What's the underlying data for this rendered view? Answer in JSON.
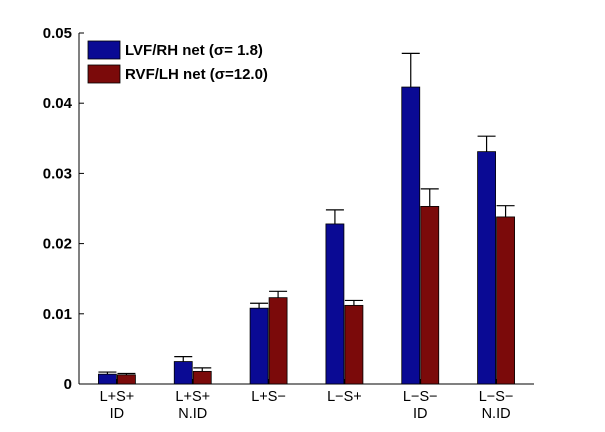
{
  "chart_data": {
    "type": "bar",
    "categories": [
      [
        "L+S+",
        "ID"
      ],
      [
        "L+S+",
        "N.ID"
      ],
      [
        "L+S−"
      ],
      [
        "L−S+"
      ],
      [
        "L−S−",
        "ID"
      ],
      [
        "L−S−",
        "N.ID"
      ]
    ],
    "series": [
      {
        "name": "LVF/RH net (σ= 1.8)",
        "color": "#0a0a94",
        "values": [
          0.0014,
          0.0032,
          0.0108,
          0.0228,
          0.0423,
          0.0331
        ],
        "errors": [
          0.0003,
          0.0007,
          0.0007,
          0.002,
          0.0048,
          0.0022
        ]
      },
      {
        "name": "RVF/LH net (σ=12.0)",
        "color": "#7b0a0a",
        "values": [
          0.0013,
          0.0018,
          0.0123,
          0.0112,
          0.0253,
          0.0238
        ],
        "errors": [
          0.0002,
          0.0005,
          0.0009,
          0.0007,
          0.0025,
          0.0016
        ]
      }
    ],
    "ylim": [
      0,
      0.05
    ],
    "yticks": [
      "0",
      "0.01",
      "0.02",
      "0.03",
      "0.04",
      "0.05"
    ],
    "xlabel": "",
    "ylabel": "",
    "title": "",
    "legend_position": "top-left",
    "grid": false
  }
}
